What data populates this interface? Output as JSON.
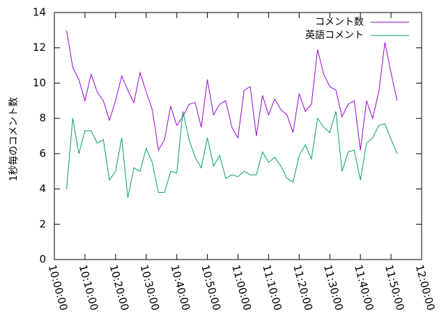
{
  "chart_data": {
    "type": "line",
    "ylabel": "1秒毎のコメント数",
    "x": [
      "10:04:00",
      "10:06:00",
      "10:08:00",
      "10:10:00",
      "10:12:00",
      "10:14:00",
      "10:16:00",
      "10:18:00",
      "10:20:00",
      "10:22:00",
      "10:24:00",
      "10:26:00",
      "10:28:00",
      "10:30:00",
      "10:32:00",
      "10:34:00",
      "10:36:00",
      "10:38:00",
      "10:40:00",
      "10:42:00",
      "10:44:00",
      "10:46:00",
      "10:48:00",
      "10:50:00",
      "10:52:00",
      "10:54:00",
      "10:56:00",
      "10:58:00",
      "11:00:00",
      "11:02:00",
      "11:04:00",
      "11:06:00",
      "11:08:00",
      "11:10:00",
      "11:12:00",
      "11:14:00",
      "11:16:00",
      "11:18:00",
      "11:20:00",
      "11:22:00",
      "11:24:00",
      "11:26:00",
      "11:28:00",
      "11:30:00",
      "11:32:00",
      "11:34:00",
      "11:36:00",
      "11:38:00",
      "11:40:00",
      "11:42:00",
      "11:44:00",
      "11:46:00",
      "11:48:00",
      "11:50:00",
      "11:52:00"
    ],
    "series": [
      {
        "name": "コメント数",
        "color": "#9400d3",
        "values": [
          13.0,
          10.9,
          10.2,
          9.0,
          10.5,
          9.5,
          9.0,
          7.9,
          9.0,
          10.4,
          9.6,
          8.9,
          10.6,
          9.5,
          8.5,
          6.2,
          6.8,
          8.7,
          7.6,
          8.1,
          8.8,
          8.9,
          7.5,
          10.2,
          8.2,
          8.8,
          9.0,
          7.5,
          6.9,
          9.6,
          9.8,
          7.0,
          9.3,
          8.2,
          9.1,
          8.5,
          8.2,
          7.2,
          9.4,
          8.4,
          8.8,
          11.9,
          10.5,
          9.8,
          9.6,
          8.1,
          8.8,
          9.0,
          6.2,
          9.0,
          8.0,
          9.5,
          12.3,
          10.6,
          9.0
        ]
      },
      {
        "name": "英語コメント",
        "color": "#009e73",
        "values": [
          4.0,
          8.0,
          6.0,
          7.3,
          7.3,
          6.6,
          6.8,
          4.5,
          5.0,
          6.9,
          3.5,
          5.2,
          5.0,
          6.3,
          5.5,
          3.8,
          3.8,
          5.0,
          4.9,
          8.4,
          6.8,
          5.8,
          5.2,
          6.9,
          5.3,
          5.9,
          4.6,
          4.8,
          4.7,
          5.0,
          4.8,
          4.8,
          6.1,
          5.5,
          5.8,
          5.3,
          4.6,
          4.4,
          5.9,
          6.5,
          5.7,
          8.0,
          7.5,
          7.2,
          8.4,
          5.0,
          6.1,
          6.2,
          4.5,
          6.6,
          6.9,
          7.6,
          7.7,
          6.8,
          6.0
        ]
      }
    ],
    "xlim": [
      "10:00:00",
      "12:00:00"
    ],
    "xticks": [
      "10:00:00",
      "10:10:00",
      "10:20:00",
      "10:30:00",
      "10:40:00",
      "10:50:00",
      "11:00:00",
      "11:10:00",
      "11:20:00",
      "11:30:00",
      "11:40:00",
      "11:50:00",
      "12:00:00"
    ],
    "ylim": [
      0,
      14
    ],
    "yticks": [
      0,
      2,
      4,
      6,
      8,
      10,
      12,
      14
    ],
    "legend": "top-right"
  }
}
